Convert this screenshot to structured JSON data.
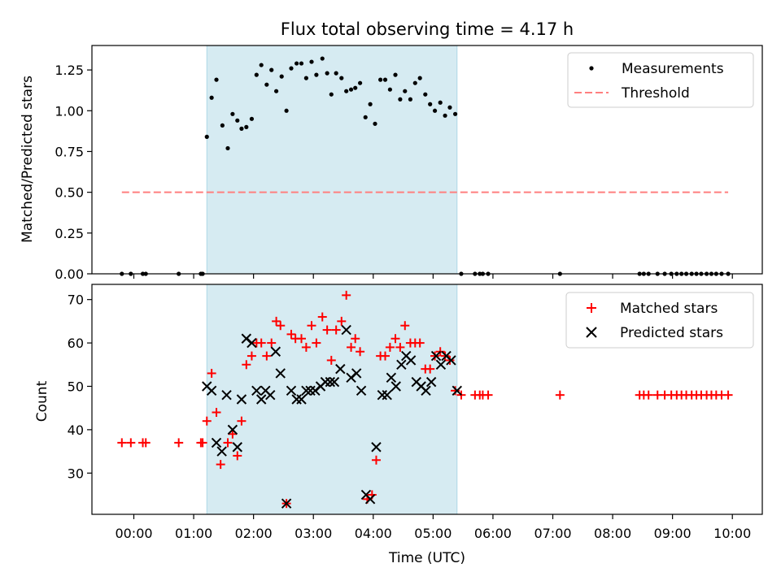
{
  "chart_data": {
    "title": "Flux total observing time = 4.17 h",
    "shaded_span": {
      "start_hours": 1.22,
      "end_hours": 5.4,
      "color": "#add8e6"
    },
    "x_axis": {
      "label": "Time (UTC)",
      "range_hours": [
        -0.7,
        10.5
      ],
      "ticks": [
        {
          "value": 0,
          "label": "00:00"
        },
        {
          "value": 1,
          "label": "01:00"
        },
        {
          "value": 2,
          "label": "02:00"
        },
        {
          "value": 3,
          "label": "03:00"
        },
        {
          "value": 4,
          "label": "04:00"
        },
        {
          "value": 5,
          "label": "05:00"
        },
        {
          "value": 6,
          "label": "06:00"
        },
        {
          "value": 7,
          "label": "07:00"
        },
        {
          "value": 8,
          "label": "08:00"
        },
        {
          "value": 9,
          "label": "09:00"
        },
        {
          "value": 10,
          "label": "10:00"
        }
      ]
    },
    "charts": [
      {
        "type": "scatter",
        "ylabel": "Matched/Predicted stars",
        "ylim": [
          0,
          1.4
        ],
        "yticks": [
          {
            "value": 0,
            "label": "0.00"
          },
          {
            "value": 0.25,
            "label": "0.25"
          },
          {
            "value": 0.5,
            "label": "0.50"
          },
          {
            "value": 0.75,
            "label": "0.75"
          },
          {
            "value": 1.0,
            "label": "1.00"
          },
          {
            "value": 1.25,
            "label": "1.25"
          }
        ],
        "legend_position": "top-right",
        "series": [
          {
            "name": "Measurements",
            "color": "#000000",
            "points": [
              [
                -0.2,
                0
              ],
              [
                -0.05,
                0
              ],
              [
                0.15,
                0
              ],
              [
                0.2,
                0
              ],
              [
                0.75,
                0
              ],
              [
                1.12,
                0
              ],
              [
                1.15,
                0
              ],
              [
                1.22,
                0.84
              ],
              [
                1.3,
                1.08
              ],
              [
                1.38,
                1.19
              ],
              [
                1.48,
                0.91
              ],
              [
                1.57,
                0.77
              ],
              [
                1.65,
                0.98
              ],
              [
                1.73,
                0.94
              ],
              [
                1.8,
                0.89
              ],
              [
                1.88,
                0.9
              ],
              [
                1.97,
                0.95
              ],
              [
                2.05,
                1.22
              ],
              [
                2.13,
                1.28
              ],
              [
                2.22,
                1.16
              ],
              [
                2.3,
                1.25
              ],
              [
                2.38,
                1.12
              ],
              [
                2.47,
                1.21
              ],
              [
                2.55,
                1.0
              ],
              [
                2.63,
                1.26
              ],
              [
                2.72,
                1.29
              ],
              [
                2.8,
                1.29
              ],
              [
                2.88,
                1.2
              ],
              [
                2.97,
                1.3
              ],
              [
                3.05,
                1.22
              ],
              [
                3.15,
                1.32
              ],
              [
                3.23,
                1.23
              ],
              [
                3.3,
                1.1
              ],
              [
                3.38,
                1.23
              ],
              [
                3.47,
                1.2
              ],
              [
                3.55,
                1.12
              ],
              [
                3.63,
                1.13
              ],
              [
                3.7,
                1.14
              ],
              [
                3.78,
                1.17
              ],
              [
                3.87,
                0.96
              ],
              [
                3.95,
                1.04
              ],
              [
                4.03,
                0.92
              ],
              [
                4.12,
                1.19
              ],
              [
                4.2,
                1.19
              ],
              [
                4.28,
                1.13
              ],
              [
                4.37,
                1.22
              ],
              [
                4.45,
                1.07
              ],
              [
                4.53,
                1.12
              ],
              [
                4.62,
                1.07
              ],
              [
                4.7,
                1.17
              ],
              [
                4.78,
                1.2
              ],
              [
                4.87,
                1.1
              ],
              [
                4.95,
                1.04
              ],
              [
                5.03,
                1.0
              ],
              [
                5.12,
                1.05
              ],
              [
                5.2,
                0.97
              ],
              [
                5.28,
                1.02
              ],
              [
                5.37,
                0.98
              ],
              [
                5.47,
                0
              ],
              [
                5.7,
                0
              ],
              [
                5.78,
                0
              ],
              [
                5.83,
                0
              ],
              [
                5.92,
                0
              ],
              [
                7.12,
                0
              ],
              [
                8.45,
                0
              ],
              [
                8.52,
                0
              ],
              [
                8.6,
                0
              ],
              [
                8.75,
                0
              ],
              [
                8.87,
                0
              ],
              [
                8.98,
                0
              ],
              [
                9.07,
                0
              ],
              [
                9.15,
                0
              ],
              [
                9.23,
                0
              ],
              [
                9.32,
                0
              ],
              [
                9.4,
                0
              ],
              [
                9.48,
                0
              ],
              [
                9.57,
                0
              ],
              [
                9.65,
                0
              ],
              [
                9.73,
                0
              ],
              [
                9.82,
                0
              ],
              [
                9.93,
                0
              ]
            ]
          },
          {
            "name": "Threshold",
            "type": "line",
            "style": "dashed",
            "color": "#ff7f7f",
            "points": [
              [
                -0.2,
                0.5
              ],
              [
                9.93,
                0.5
              ]
            ]
          }
        ]
      },
      {
        "type": "scatter",
        "ylabel": "Count",
        "xlabel": "Time (UTC)",
        "ylim": [
          20.5,
          73.5
        ],
        "yticks": [
          {
            "value": 30,
            "label": "30"
          },
          {
            "value": 40,
            "label": "40"
          },
          {
            "value": 50,
            "label": "50"
          },
          {
            "value": 60,
            "label": "60"
          },
          {
            "value": 70,
            "label": "70"
          }
        ],
        "legend_position": "top-right",
        "series": [
          {
            "name": "Matched stars",
            "marker": "plus",
            "color": "#ff0000",
            "points": [
              [
                -0.2,
                37
              ],
              [
                -0.05,
                37
              ],
              [
                0.15,
                37
              ],
              [
                0.2,
                37
              ],
              [
                0.75,
                37
              ],
              [
                1.12,
                37
              ],
              [
                1.15,
                37
              ],
              [
                1.22,
                42
              ],
              [
                1.3,
                53
              ],
              [
                1.38,
                44
              ],
              [
                1.45,
                32
              ],
              [
                1.57,
                37
              ],
              [
                1.65,
                39
              ],
              [
                1.73,
                34
              ],
              [
                1.8,
                42
              ],
              [
                1.88,
                55
              ],
              [
                1.97,
                57
              ],
              [
                2.05,
                60
              ],
              [
                2.13,
                60
              ],
              [
                2.22,
                57
              ],
              [
                2.3,
                60
              ],
              [
                2.38,
                65
              ],
              [
                2.45,
                64
              ],
              [
                2.55,
                23
              ],
              [
                2.63,
                62
              ],
              [
                2.7,
                61
              ],
              [
                2.8,
                61
              ],
              [
                2.88,
                59
              ],
              [
                2.97,
                64
              ],
              [
                3.05,
                60
              ],
              [
                3.15,
                66
              ],
              [
                3.23,
                63
              ],
              [
                3.3,
                56
              ],
              [
                3.38,
                63
              ],
              [
                3.47,
                65
              ],
              [
                3.55,
                71
              ],
              [
                3.63,
                59
              ],
              [
                3.7,
                61
              ],
              [
                3.78,
                58
              ],
              [
                3.9,
                24
              ],
              [
                3.98,
                25
              ],
              [
                4.05,
                33
              ],
              [
                4.12,
                57
              ],
              [
                4.2,
                57
              ],
              [
                4.28,
                59
              ],
              [
                4.37,
                61
              ],
              [
                4.45,
                59
              ],
              [
                4.53,
                64
              ],
              [
                4.62,
                60
              ],
              [
                4.7,
                60
              ],
              [
                4.78,
                60
              ],
              [
                4.87,
                54
              ],
              [
                4.95,
                54
              ],
              [
                5.03,
                57
              ],
              [
                5.12,
                58
              ],
              [
                5.2,
                57
              ],
              [
                5.28,
                56
              ],
              [
                5.37,
                49
              ],
              [
                5.47,
                48
              ],
              [
                5.7,
                48
              ],
              [
                5.78,
                48
              ],
              [
                5.83,
                48
              ],
              [
                5.92,
                48
              ],
              [
                7.12,
                48
              ],
              [
                8.45,
                48
              ],
              [
                8.52,
                48
              ],
              [
                8.6,
                48
              ],
              [
                8.75,
                48
              ],
              [
                8.87,
                48
              ],
              [
                8.98,
                48
              ],
              [
                9.07,
                48
              ],
              [
                9.15,
                48
              ],
              [
                9.23,
                48
              ],
              [
                9.32,
                48
              ],
              [
                9.4,
                48
              ],
              [
                9.48,
                48
              ],
              [
                9.57,
                48
              ],
              [
                9.65,
                48
              ],
              [
                9.73,
                48
              ],
              [
                9.82,
                48
              ],
              [
                9.93,
                48
              ]
            ]
          },
          {
            "name": "Predicted stars",
            "marker": "x",
            "color": "#000000",
            "points": [
              [
                1.22,
                50
              ],
              [
                1.3,
                49
              ],
              [
                1.38,
                37
              ],
              [
                1.47,
                35
              ],
              [
                1.55,
                48
              ],
              [
                1.65,
                40
              ],
              [
                1.73,
                36
              ],
              [
                1.8,
                47
              ],
              [
                1.88,
                61
              ],
              [
                1.97,
                60
              ],
              [
                2.05,
                49
              ],
              [
                2.13,
                47
              ],
              [
                2.2,
                49
              ],
              [
                2.28,
                48
              ],
              [
                2.37,
                58
              ],
              [
                2.45,
                53
              ],
              [
                2.55,
                23
              ],
              [
                2.63,
                49
              ],
              [
                2.72,
                47
              ],
              [
                2.8,
                47
              ],
              [
                2.88,
                49
              ],
              [
                2.95,
                49
              ],
              [
                3.03,
                49
              ],
              [
                3.12,
                50
              ],
              [
                3.2,
                51
              ],
              [
                3.28,
                51
              ],
              [
                3.35,
                51
              ],
              [
                3.45,
                54
              ],
              [
                3.55,
                63
              ],
              [
                3.63,
                52
              ],
              [
                3.72,
                53
              ],
              [
                3.8,
                49
              ],
              [
                3.88,
                25
              ],
              [
                3.95,
                24
              ],
              [
                4.05,
                36
              ],
              [
                4.15,
                48
              ],
              [
                4.23,
                48
              ],
              [
                4.3,
                52
              ],
              [
                4.38,
                50
              ],
              [
                4.47,
                55
              ],
              [
                4.55,
                57
              ],
              [
                4.63,
                56
              ],
              [
                4.72,
                51
              ],
              [
                4.8,
                50
              ],
              [
                4.88,
                49
              ],
              [
                4.97,
                51
              ],
              [
                5.05,
                57
              ],
              [
                5.13,
                55
              ],
              [
                5.22,
                57
              ],
              [
                5.3,
                56
              ],
              [
                5.4,
                49
              ]
            ]
          }
        ]
      }
    ]
  }
}
